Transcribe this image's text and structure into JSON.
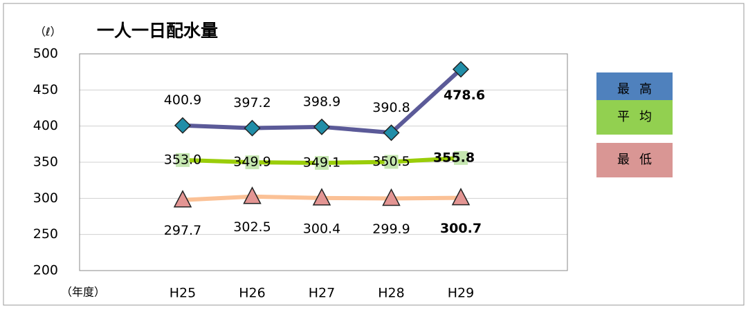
{
  "chart_data": {
    "type": "line",
    "title": "一人一日配水量",
    "y_label": "（ℓ）",
    "x_label": "（年度）",
    "categories": [
      "H25",
      "H26",
      "H27",
      "H28",
      "H29"
    ],
    "ylim": [
      200,
      500
    ],
    "yticks": [
      200,
      250,
      300,
      350,
      400,
      450,
      500
    ],
    "grid": true,
    "legend": "right",
    "series": [
      {
        "name": "最高",
        "color": "#5b5a98",
        "marker_color": "#218ea8",
        "legend_color": "#4f81bd",
        "marker": "diamond",
        "label_pos": "above",
        "values": [
          400.9,
          397.2,
          398.9,
          390.8,
          478.6
        ],
        "value_labels": [
          "400.9",
          "397.2",
          "398.9",
          "390.8",
          "478.6"
        ]
      },
      {
        "name": "平均",
        "color": "#9acd0a",
        "marker_color": "#c5e6b0",
        "legend_color": "#92d050",
        "marker": "square",
        "label_pos": "center",
        "values": [
          353.0,
          349.9,
          349.1,
          350.5,
          355.8
        ],
        "value_labels": [
          "353.0",
          "349.9",
          "349.1",
          "350.5",
          "355.8"
        ]
      },
      {
        "name": "最低",
        "color": "#fbc196",
        "marker_color": "#e39593",
        "legend_color": "#d99694",
        "marker": "triangle",
        "label_pos": "below",
        "values": [
          297.7,
          302.5,
          300.4,
          299.9,
          300.7
        ],
        "value_labels": [
          "297.7",
          "302.5",
          "300.4",
          "299.9",
          "300.7"
        ]
      }
    ]
  }
}
